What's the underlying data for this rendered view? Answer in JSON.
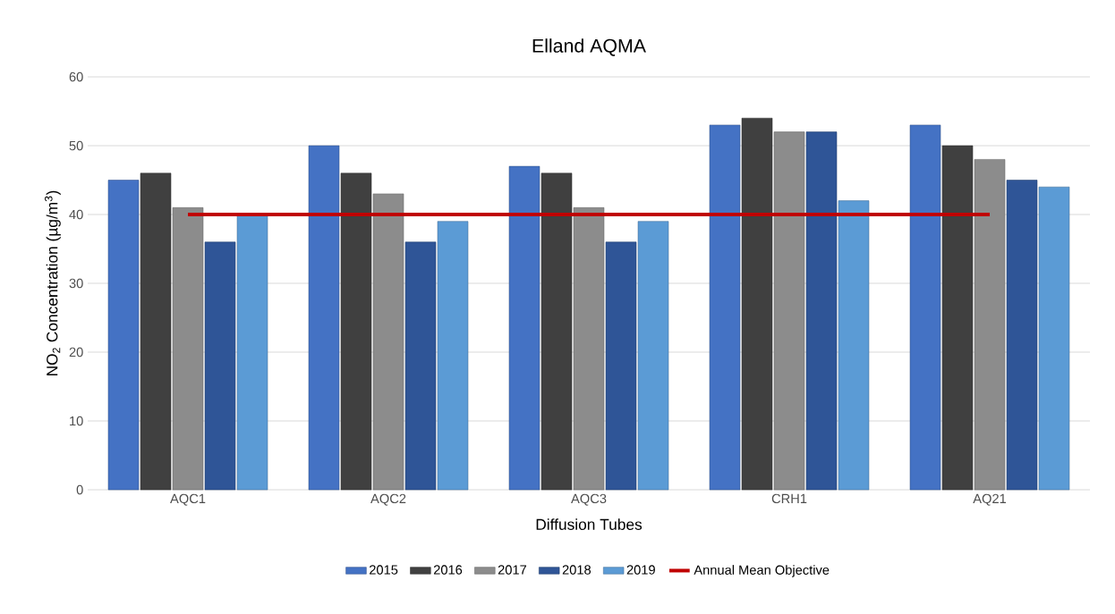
{
  "chart_data": {
    "type": "bar",
    "title": "Elland AQMA",
    "xlabel": "Diffusion Tubes",
    "ylabel": "NO$_{2}$ Concentration (µg/m$^{3}$)",
    "categories": [
      "AQC1",
      "AQC2",
      "AQC3",
      "CRH1",
      "AQ21"
    ],
    "series": [
      {
        "name": "2015",
        "color": "#4472c4",
        "values": [
          45,
          50,
          47,
          53,
          53
        ]
      },
      {
        "name": "2016",
        "color": "#404040",
        "values": [
          46,
          46,
          46,
          54,
          50
        ]
      },
      {
        "name": "2017",
        "color": "#8c8c8c",
        "values": [
          41,
          43,
          41,
          52,
          48
        ]
      },
      {
        "name": "2018",
        "color": "#2f5597",
        "values": [
          36,
          36,
          36,
          52,
          45
        ]
      },
      {
        "name": "2019",
        "color": "#5b9bd5",
        "values": [
          40,
          39,
          39,
          42,
          44
        ]
      },
      {
        "name": "Annual Mean Objective",
        "type": "line",
        "color": "#c00000",
        "values": [
          40,
          40,
          40,
          40,
          40
        ]
      }
    ],
    "ylim": [
      0,
      60
    ],
    "yticks": [
      0,
      10,
      20,
      30,
      40,
      50,
      60
    ],
    "grid": "y",
    "legend": "bottom"
  }
}
